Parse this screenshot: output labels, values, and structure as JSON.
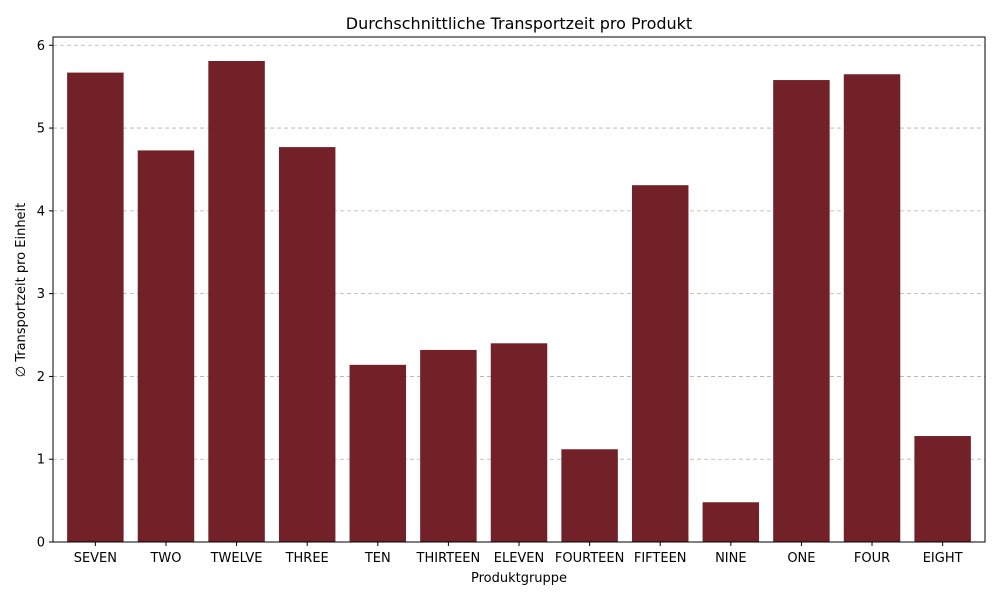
{
  "chart_data": {
    "type": "bar",
    "title": "Durchschnittliche Transportzeit pro Produkt",
    "xlabel": "Produktgruppe",
    "ylabel": "∅ Transportzeit pro Einheit",
    "categories": [
      "SEVEN",
      "TWO",
      "TWELVE",
      "THREE",
      "TEN",
      "THIRTEEN",
      "ELEVEN",
      "FOURTEEN",
      "FIFTEEN",
      "NINE",
      "ONE",
      "FOUR",
      "EIGHT"
    ],
    "values": [
      5.67,
      4.73,
      5.81,
      4.77,
      2.14,
      2.32,
      2.4,
      1.12,
      4.31,
      0.48,
      5.58,
      5.65,
      1.28
    ],
    "ylim": [
      0,
      6.1
    ],
    "yticks": [
      0,
      1,
      2,
      3,
      4,
      5,
      6
    ],
    "grid": "y-dashed",
    "bar_color": "#722129"
  }
}
